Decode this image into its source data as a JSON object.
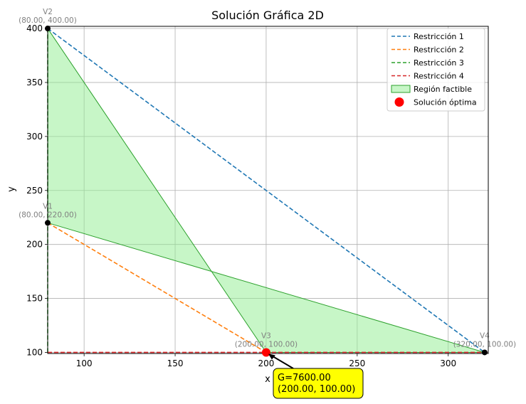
{
  "chart_data": {
    "type": "line",
    "title": "Solución Gráfica 2D",
    "xlabel": "x",
    "ylabel": "y",
    "xlim": [
      80,
      322
    ],
    "ylim": [
      99,
      402
    ],
    "xticks": [
      100,
      150,
      200,
      250,
      300
    ],
    "yticks": [
      100,
      150,
      200,
      250,
      300,
      350,
      400
    ],
    "grid": true,
    "legend_position": "top-right",
    "series": [
      {
        "name": "Restricción 1",
        "style": "dashed",
        "color": "#1f77b4",
        "x": [
          80,
          320
        ],
        "y": [
          400,
          100
        ]
      },
      {
        "name": "Restricción 2",
        "style": "dashed",
        "color": "#ff7f0e",
        "x": [
          80,
          200
        ],
        "y": [
          220,
          100
        ]
      },
      {
        "name": "Restricción 3",
        "style": "dashed",
        "color": "#2ca02c",
        "x": [
          80,
          80
        ],
        "y": [
          100,
          402
        ]
      },
      {
        "name": "Restricción 4",
        "style": "dashed",
        "color": "#d62728",
        "x": [
          80,
          322
        ],
        "y": [
          100,
          100
        ]
      }
    ],
    "region": {
      "name": "Región factible",
      "fill": "#90ee90",
      "edge": "#2ca02c",
      "polygon": [
        [
          80,
          400
        ],
        [
          80,
          220
        ],
        [
          320,
          100
        ],
        [
          200,
          100
        ]
      ]
    },
    "vertices": [
      {
        "label": "V1",
        "coords": "(80.00, 220.00)",
        "x": 80,
        "y": 220
      },
      {
        "label": "V2",
        "coords": "(80.00, 400.00)",
        "x": 80,
        "y": 400
      },
      {
        "label": "V3",
        "coords": "(200.00, 100.00)",
        "x": 200,
        "y": 100
      },
      {
        "label": "V4",
        "coords": "(320.00, 100.00)",
        "x": 320,
        "y": 100
      }
    ],
    "optimum": {
      "name": "Solución óptima",
      "color": "#ff0000",
      "x": 200,
      "y": 100,
      "annotation_line1": "G=7600.00",
      "annotation_line2": "(200.00, 100.00)",
      "annotation_bg": "#ffff00"
    }
  }
}
